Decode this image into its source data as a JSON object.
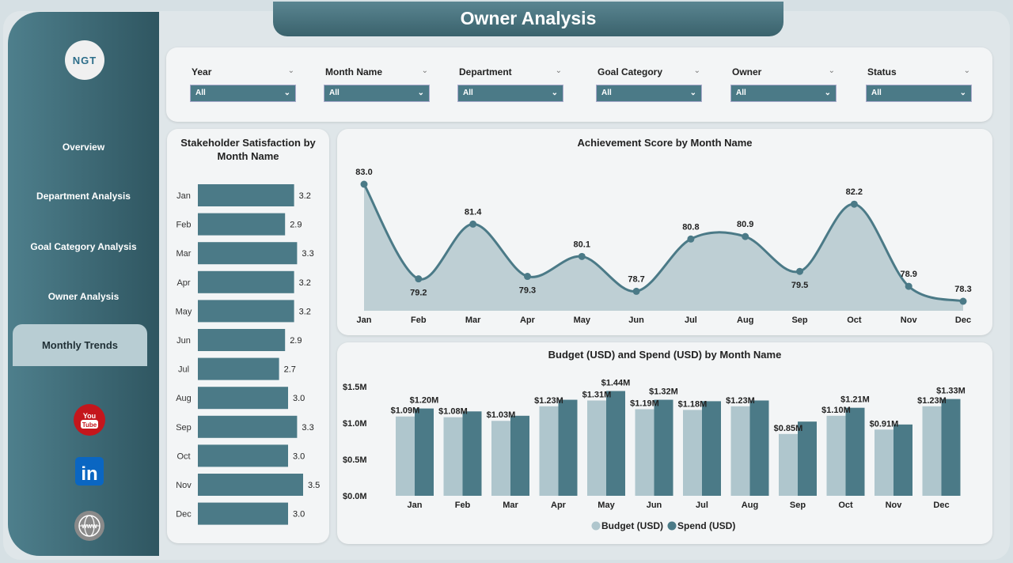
{
  "title": "Owner Analysis",
  "logo_text": "NGT",
  "sidebar": {
    "items": [
      {
        "label": "Overview"
      },
      {
        "label": "Department Analysis"
      },
      {
        "label": "Goal Category Analysis"
      },
      {
        "label": "Owner Analysis"
      },
      {
        "label": "Monthly Trends"
      }
    ],
    "active": "Monthly Trends",
    "social": [
      "youtube-icon",
      "linkedin-icon",
      "globe-icon"
    ]
  },
  "filters": [
    {
      "label": "Year",
      "value": "All"
    },
    {
      "label": "Month Name",
      "value": "All"
    },
    {
      "label": "Department",
      "value": "All"
    },
    {
      "label": "Goal Category",
      "value": "All"
    },
    {
      "label": "Owner",
      "value": "All"
    },
    {
      "label": "Status",
      "value": "All"
    }
  ],
  "chart_data": [
    {
      "type": "bar",
      "orientation": "horizontal",
      "title": "Stakeholder Satisfaction by Month Name",
      "categories": [
        "Jan",
        "Feb",
        "Mar",
        "Apr",
        "May",
        "Jun",
        "Jul",
        "Aug",
        "Sep",
        "Oct",
        "Nov",
        "Dec"
      ],
      "values": [
        3.2,
        2.9,
        3.3,
        3.2,
        3.2,
        2.9,
        2.7,
        3.0,
        3.3,
        3.0,
        3.5,
        3.0
      ],
      "labels": [
        "3.2",
        "2.9",
        "3.3",
        "3.2",
        "3.2",
        "2.9",
        "2.7",
        "3.0",
        "3.3",
        "3.0",
        "3.5",
        "3.0"
      ],
      "color": "#4b7a87"
    },
    {
      "type": "area",
      "title": "Achievement Score by Month Name",
      "categories": [
        "Jan",
        "Feb",
        "Mar",
        "Apr",
        "May",
        "Jun",
        "Jul",
        "Aug",
        "Sep",
        "Oct",
        "Nov",
        "Dec"
      ],
      "values": [
        83.0,
        79.2,
        81.4,
        79.3,
        80.1,
        78.7,
        80.8,
        80.9,
        79.5,
        82.2,
        78.9,
        78.3
      ],
      "labels": [
        "83.0",
        "79.2",
        "81.4",
        "79.3",
        "80.1",
        "78.7",
        "80.8",
        "80.9",
        "79.5",
        "82.2",
        "78.9",
        "78.3"
      ],
      "color": "#4b7a87",
      "fill": "#b4c8ce"
    },
    {
      "type": "bar",
      "title": "Budget (USD) and Spend (USD) by Month Name",
      "categories": [
        "Jan",
        "Feb",
        "Mar",
        "Apr",
        "May",
        "Jun",
        "Jul",
        "Aug",
        "Sep",
        "Oct",
        "Nov",
        "Dec"
      ],
      "yticks": [
        "$0.0M",
        "$0.5M",
        "$1.0M",
        "$1.5M"
      ],
      "ylim": [
        0,
        1.5
      ],
      "series": [
        {
          "name": "Budget (USD)",
          "color": "#afc6cd",
          "values": [
            1.09,
            1.08,
            1.03,
            1.23,
            1.31,
            1.19,
            1.18,
            1.23,
            0.85,
            1.1,
            0.91,
            1.23
          ],
          "labels": [
            "$1.09M",
            "$1.08M",
            "$1.03M",
            "$1.23M",
            "$1.31M",
            "$1.19M",
            "$1.18M",
            "$1.23M",
            "$0.85M",
            "$1.10M",
            "$0.91M",
            "$1.23M"
          ]
        },
        {
          "name": "Spend (USD)",
          "color": "#4b7a87",
          "values": [
            1.2,
            1.16,
            1.1,
            1.32,
            1.44,
            1.32,
            1.3,
            1.31,
            1.02,
            1.21,
            0.98,
            1.33
          ],
          "labels": [
            "$1.20M",
            null,
            null,
            null,
            "$1.44M",
            "$1.32M",
            null,
            null,
            null,
            "$1.21M",
            null,
            "$1.33M"
          ]
        }
      ]
    }
  ]
}
